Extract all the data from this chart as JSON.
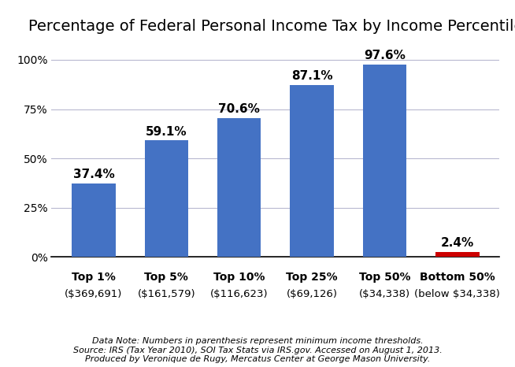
{
  "title": "Percentage of Federal Personal Income Tax by Income Percentile",
  "categories": [
    "Top 1%",
    "Top 5%",
    "Top 10%",
    "Top 25%",
    "Top 50%",
    "Bottom 50%"
  ],
  "subcategories": [
    "($369,691)",
    "($161,579)",
    "($116,623)",
    "($69,126)",
    "($34,338)",
    "(below $34,338)"
  ],
  "values": [
    37.4,
    59.1,
    70.6,
    87.1,
    97.6,
    2.4
  ],
  "bar_colors": [
    "#4472C4",
    "#4472C4",
    "#4472C4",
    "#4472C4",
    "#4472C4",
    "#CC0000"
  ],
  "yticks": [
    0,
    25,
    50,
    75,
    100
  ],
  "ytick_labels": [
    "0%",
    "25%",
    "50%",
    "75%",
    "100%"
  ],
  "ylim": [
    0,
    108
  ],
  "footnote": "Data Note: Numbers in parenthesis represent minimum income thresholds.\nSource: IRS (Tax Year 2010), SOI Tax Stats via IRS.gov. Accessed on August 1, 2013.\nProduced by Veronique de Rugy, Mercatus Center at George Mason University.",
  "title_fontsize": 14,
  "label_fontsize": 10,
  "bar_label_fontsize": 11,
  "footnote_fontsize": 8,
  "background_color": "#FFFFFF",
  "grid_color": "#B8B8D0",
  "axis_color": "#000000"
}
